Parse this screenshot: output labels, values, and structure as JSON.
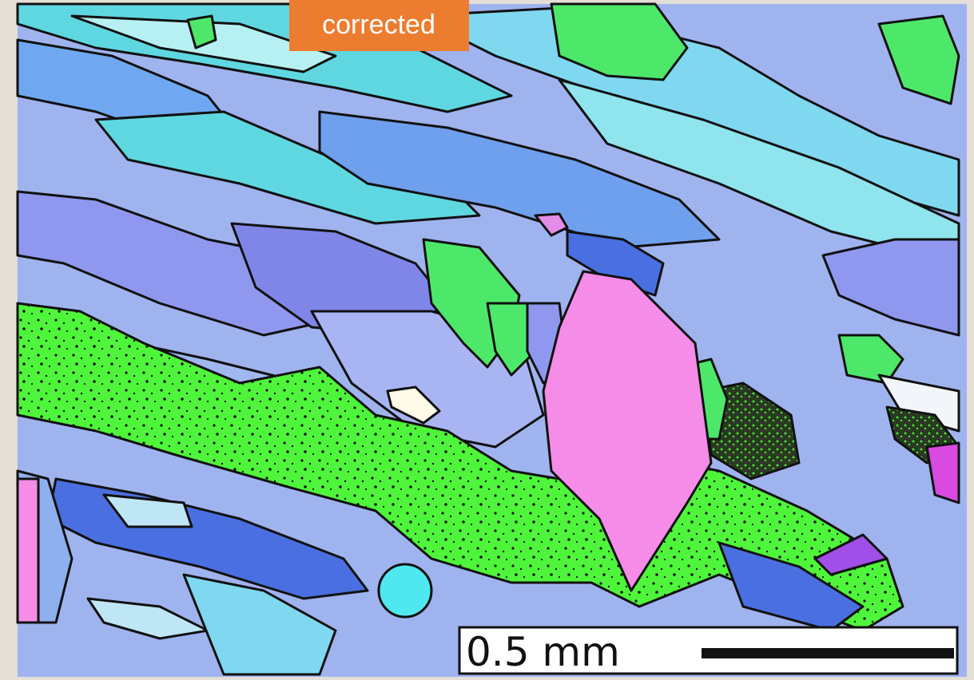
{
  "label": "corrected",
  "scale_bar": {
    "label": "0.5 mm"
  }
}
